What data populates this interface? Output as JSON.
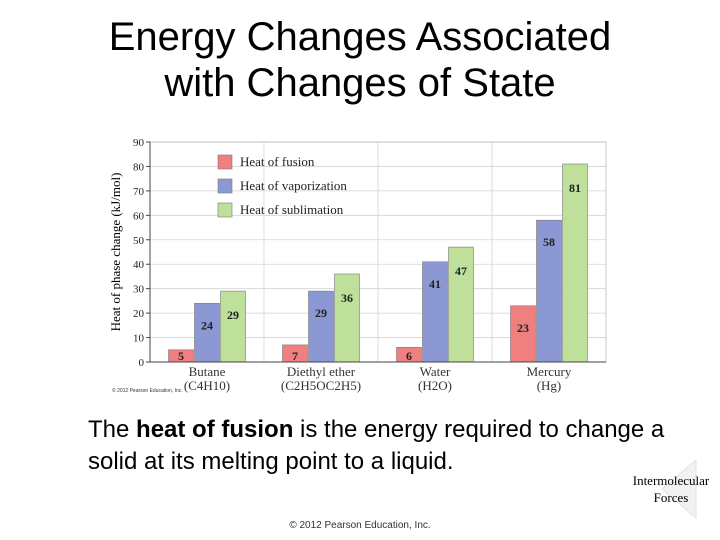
{
  "slide": {
    "title_line1": "Energy Changes Associated",
    "title_line2": "with Changes of State",
    "caption_prefix": "The ",
    "caption_bold": "heat of fusion",
    "caption_suffix": " is the energy required to change a solid at its melting point to a liquid.",
    "corner_label_line1": "Intermolecular",
    "corner_label_line2": "Forces",
    "footer": "© 2012 Pearson Education, Inc."
  },
  "chart_data": {
    "type": "bar",
    "ylabel": "Heat of phase change (kJ/mol)",
    "ylim": [
      0,
      90
    ],
    "yticks": [
      0,
      10,
      20,
      30,
      40,
      50,
      60,
      70,
      80,
      90
    ],
    "categories": [
      "Butane",
      "Diethyl ether",
      "Water",
      "Mercury"
    ],
    "category_formulas": [
      "(C4H10)",
      "(C2H5OC2H5)",
      "(H2O)",
      "(Hg)"
    ],
    "series": [
      {
        "name": "Heat of fusion",
        "color": "#f08080",
        "values": [
          5,
          7,
          6,
          23
        ]
      },
      {
        "name": "Heat of vaporization",
        "color": "#8c98d4",
        "values": [
          24,
          29,
          41,
          58
        ]
      },
      {
        "name": "Heat of sublimation",
        "color": "#bfe09a",
        "values": [
          29,
          36,
          47,
          81
        ]
      }
    ],
    "grid": true,
    "legend_position": "top-left",
    "copyright": "© 2012 Pearson Education, Inc."
  }
}
